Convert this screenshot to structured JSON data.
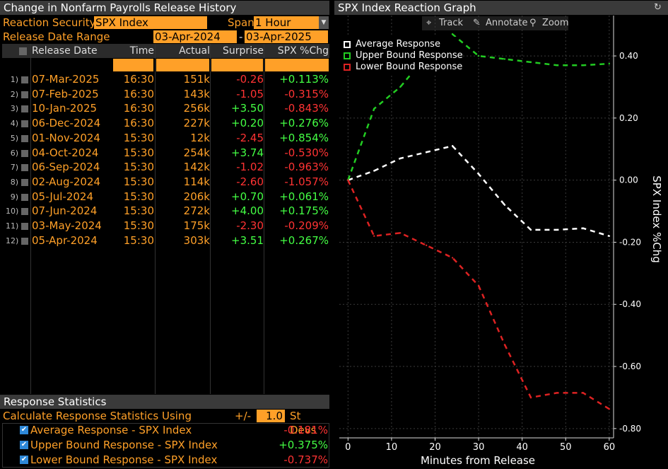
{
  "left_panel": {
    "title": "Change in Nonfarm Payrolls Release History",
    "reaction_security_label": "Reaction Security",
    "reaction_security_value": "SPX Index",
    "span_label": "Span",
    "span_value": "1 Hour",
    "release_date_range_label": "Release Date Range",
    "date_from": "03-Apr-2024",
    "date_sep": "-",
    "date_to": "03-Apr-2025",
    "columns": [
      "Release Date",
      "Time",
      "Actual",
      "Surprise",
      "SPX %Chg"
    ],
    "rows": [
      {
        "num": "1)",
        "date": "07-Mar-2025",
        "time": "16:30",
        "actual": "151k",
        "surprise": "-0.26",
        "spx": "+0.113%"
      },
      {
        "num": "2)",
        "date": "07-Feb-2025",
        "time": "16:30",
        "actual": "143k",
        "surprise": "-1.05",
        "spx": "-0.315%"
      },
      {
        "num": "3)",
        "date": "10-Jan-2025",
        "time": "16:30",
        "actual": "256k",
        "surprise": "+3.50",
        "spx": "-0.843%"
      },
      {
        "num": "4)",
        "date": "06-Dec-2024",
        "time": "16:30",
        "actual": "227k",
        "surprise": "+0.20",
        "spx": "+0.276%"
      },
      {
        "num": "5)",
        "date": "01-Nov-2024",
        "time": "15:30",
        "actual": "12k",
        "surprise": "-2.45",
        "spx": "+0.854%"
      },
      {
        "num": "6)",
        "date": "04-Oct-2024",
        "time": "15:30",
        "actual": "254k",
        "surprise": "+3.74",
        "spx": "-0.530%"
      },
      {
        "num": "7)",
        "date": "06-Sep-2024",
        "time": "15:30",
        "actual": "142k",
        "surprise": "-1.02",
        "spx": "-0.963%"
      },
      {
        "num": "8)",
        "date": "02-Aug-2024",
        "time": "15:30",
        "actual": "114k",
        "surprise": "-2.60",
        "spx": "-1.057%"
      },
      {
        "num": "9)",
        "date": "05-Jul-2024",
        "time": "15:30",
        "actual": "206k",
        "surprise": "+0.70",
        "spx": "+0.061%"
      },
      {
        "num": "10)",
        "date": "07-Jun-2024",
        "time": "15:30",
        "actual": "272k",
        "surprise": "+4.00",
        "spx": "+0.175%"
      },
      {
        "num": "11)",
        "date": "03-May-2024",
        "time": "15:30",
        "actual": "175k",
        "surprise": "-2.30",
        "spx": "-0.209%"
      },
      {
        "num": "12)",
        "date": "05-Apr-2024",
        "time": "15:30",
        "actual": "303k",
        "surprise": "+3.51",
        "spx": "+0.267%"
      }
    ],
    "stats_title": "Response Statistics",
    "stats_calc_label": "Calculate Response Statistics Using",
    "stats_pm": "+/-",
    "stats_stdev_value": "1.0",
    "stats_stdev_label": "St Devs",
    "stats": [
      {
        "label": "Average Response - SPX Index",
        "value": "-0.181%"
      },
      {
        "label": "Upper Bound Response - SPX Index",
        "value": "+0.375%"
      },
      {
        "label": "Lower Bound Response - SPX Index",
        "value": "-0.737%"
      }
    ],
    "colors": {
      "orange": "#ffa028",
      "positive": "#44ff44",
      "negative": "#ff3333"
    }
  },
  "right_panel": {
    "title": "SPX Index Reaction Graph",
    "refresh_icon": "refresh-icon",
    "toolbar": {
      "track": "Track",
      "annotate": "Annotate",
      "zoom": "Zoom"
    }
  },
  "chart_data": {
    "type": "line",
    "xlabel": "Minutes from Release",
    "ylabel": "SPX Index %Chg",
    "xlim": [
      -2,
      61
    ],
    "ylim": [
      -0.83,
      0.53
    ],
    "xticks": [
      0,
      10,
      20,
      30,
      40,
      50,
      60
    ],
    "yticks": [
      0.4,
      0.2,
      0.0,
      -0.2,
      -0.4,
      -0.6,
      -0.8
    ],
    "ytick_labels": [
      "0.40",
      "0.20",
      "0.00",
      "-0.20",
      "-0.40",
      "-0.60",
      "-0.80"
    ],
    "grid": true,
    "legend_position": "top-left",
    "series": [
      {
        "name": "Average Response",
        "color": "#ffffff",
        "x": [
          0,
          6,
          12,
          18,
          24,
          30,
          36,
          42,
          48,
          54,
          60
        ],
        "values": [
          0.0,
          0.03,
          0.07,
          0.09,
          0.11,
          0.02,
          -0.08,
          -0.16,
          -0.16,
          -0.155,
          -0.18
        ]
      },
      {
        "name": "Upper Bound Response",
        "color": "#22cc22",
        "x": [
          0,
          6,
          12,
          18,
          24,
          30,
          36,
          42,
          48,
          54,
          60
        ],
        "values": [
          0.0,
          0.23,
          0.3,
          0.4,
          0.47,
          0.4,
          0.39,
          0.38,
          0.37,
          0.37,
          0.375
        ]
      },
      {
        "name": "Lower Bound Response",
        "color": "#dd2222",
        "x": [
          0,
          6,
          12,
          18,
          24,
          30,
          36,
          42,
          48,
          54,
          60
        ],
        "values": [
          0.0,
          -0.18,
          -0.17,
          -0.21,
          -0.25,
          -0.34,
          -0.53,
          -0.7,
          -0.685,
          -0.685,
          -0.737
        ]
      }
    ]
  }
}
